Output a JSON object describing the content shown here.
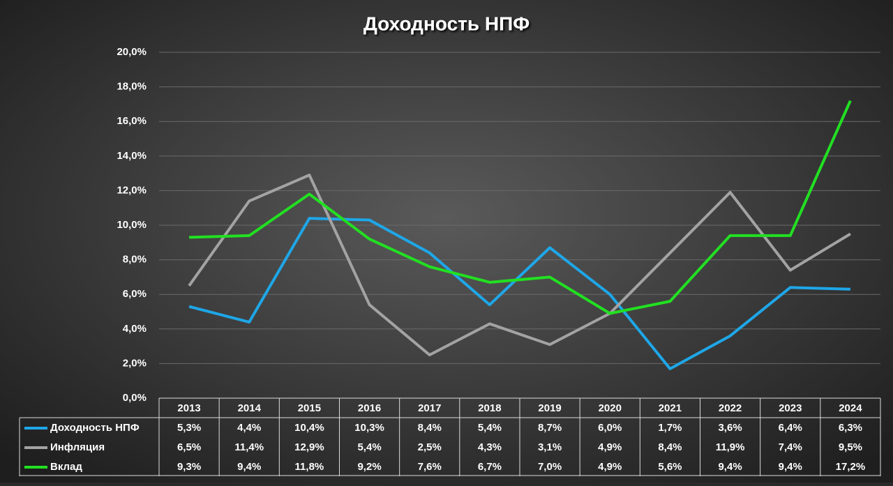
{
  "chart_data": {
    "type": "line",
    "title": "Доходность НПФ",
    "categories": [
      "2013",
      "2014",
      "2015",
      "2016",
      "2017",
      "2018",
      "2019",
      "2020",
      "2021",
      "2022",
      "2023",
      "2024"
    ],
    "series": [
      {
        "name": "Доходность НПФ",
        "color": "#1ea7e8",
        "values": [
          5.3,
          4.4,
          10.4,
          10.3,
          8.4,
          5.4,
          8.7,
          6.0,
          1.7,
          3.6,
          6.4,
          6.3
        ],
        "value_labels": [
          "5,3%",
          "4,4%",
          "10,4%",
          "10,3%",
          "8,4%",
          "5,4%",
          "8,7%",
          "6,0%",
          "1,7%",
          "3,6%",
          "6,4%",
          "6,3%"
        ]
      },
      {
        "name": "Инфляция",
        "color": "#a3a3a3",
        "values": [
          6.5,
          11.4,
          12.9,
          5.4,
          2.5,
          4.3,
          3.1,
          4.9,
          8.4,
          11.9,
          7.4,
          9.5
        ],
        "value_labels": [
          "6,5%",
          "11,4%",
          "12,9%",
          "5,4%",
          "2,5%",
          "4,3%",
          "3,1%",
          "4,9%",
          "8,4%",
          "11,9%",
          "7,4%",
          "9,5%"
        ]
      },
      {
        "name": "Вклад",
        "color": "#22e022",
        "values": [
          9.3,
          9.4,
          11.8,
          9.2,
          7.6,
          6.7,
          7.0,
          4.9,
          5.6,
          9.4,
          9.4,
          17.2
        ],
        "value_labels": [
          "9,3%",
          "9,4%",
          "11,8%",
          "9,2%",
          "7,6%",
          "6,7%",
          "7,0%",
          "4,9%",
          "5,6%",
          "9,4%",
          "9,4%",
          "17,2%"
        ]
      }
    ],
    "ylim": [
      0,
      20
    ],
    "yticks": [
      {
        "value": 0,
        "label": "0,0%"
      },
      {
        "value": 2,
        "label": "2,0%"
      },
      {
        "value": 4,
        "label": "4,0%"
      },
      {
        "value": 6,
        "label": "6,0%"
      },
      {
        "value": 8,
        "label": "8,0%"
      },
      {
        "value": 10,
        "label": "10,0%"
      },
      {
        "value": 12,
        "label": "12,0%"
      },
      {
        "value": 14,
        "label": "14,0%"
      },
      {
        "value": 16,
        "label": "16,0%"
      },
      {
        "value": 18,
        "label": "18,0%"
      },
      {
        "value": 20,
        "label": "20,0%"
      }
    ],
    "grid": true
  }
}
